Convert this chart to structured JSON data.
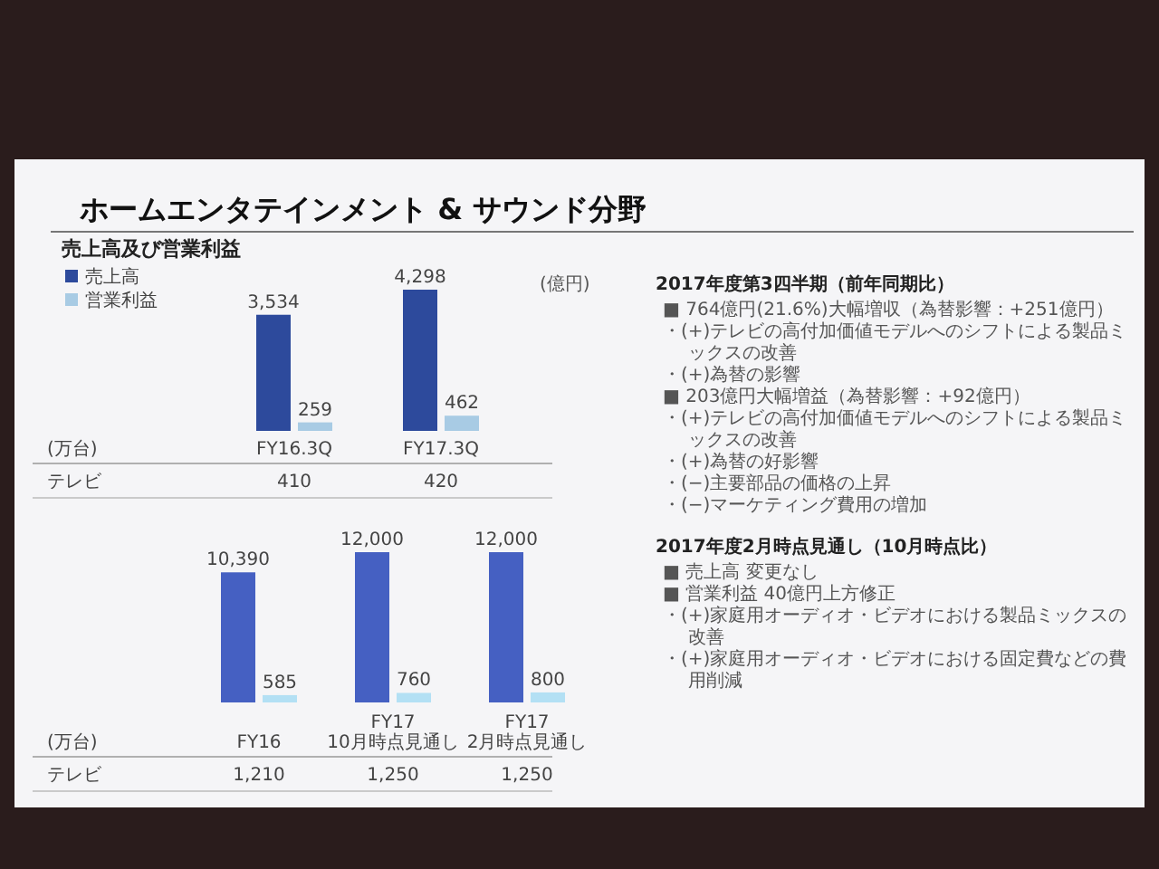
{
  "chart_data": [
    {
      "type": "bar",
      "title": "ホームエンタテインメント & サウンド分野",
      "subtitle": "売上高及び営業利益",
      "ylabel": "(億円)",
      "categories": [
        "FY16.3Q",
        "FY17.3Q"
      ],
      "series": [
        {
          "name": "売上高",
          "color": "#2d4a9c",
          "values": [
            3534,
            4298
          ],
          "value_labels": [
            "3,534",
            "4,298"
          ]
        },
        {
          "name": "営業利益",
          "color": "#a8cbe4",
          "values": [
            259,
            462
          ],
          "value_labels": [
            "259",
            "462"
          ]
        }
      ],
      "legend": "top left",
      "annotations": [
        "(万台)",
        "テレビ",
        "410",
        "420",
        "2017年度第3四半期（前年同期比）",
        "■ 764億円(21.6%)大幅増収（為替影響：+251億円）",
        "・(+)テレビの高付加価値モデルへのシフトによる製品ミックスの改善",
        "・(+)為替の影響",
        "■ 203億円大幅増益（為替影響：+92億円）",
        "・(+)テレビの高付加価値モデルへのシフトによる製品ミックスの改善",
        "・(+)為替の好影響",
        "・(−)主要部品の価格の上昇",
        "・(−)マーケティング費用の増加"
      ]
    },
    {
      "type": "bar",
      "categories": [
        "FY16",
        "FY17\n10月時点見通し",
        "FY17\n2月時点見通し"
      ],
      "series": [
        {
          "color": "#4560c2",
          "values": [
            10390,
            12000,
            12000
          ],
          "value_labels": [
            "10,390",
            "12,000",
            "12,000"
          ]
        },
        {
          "color": "#b3e0f4",
          "values": [
            585,
            760,
            800
          ],
          "value_labels": [
            "585",
            "760",
            "800"
          ]
        }
      ],
      "annotations": [
        "(万台)",
        "テレビ",
        "1,210",
        "1,250",
        "1,250",
        "2017年度2月時点見通し（10月時点比）",
        "■ 売上高 変更なし",
        "■ 営業利益 40億円上方修正",
        "・(+)家庭用オーディオ・ビデオにおける製品ミックスの改善",
        "・(+)家庭用オーディオ・ビデオにおける固定費などの費用削減"
      ]
    }
  ]
}
